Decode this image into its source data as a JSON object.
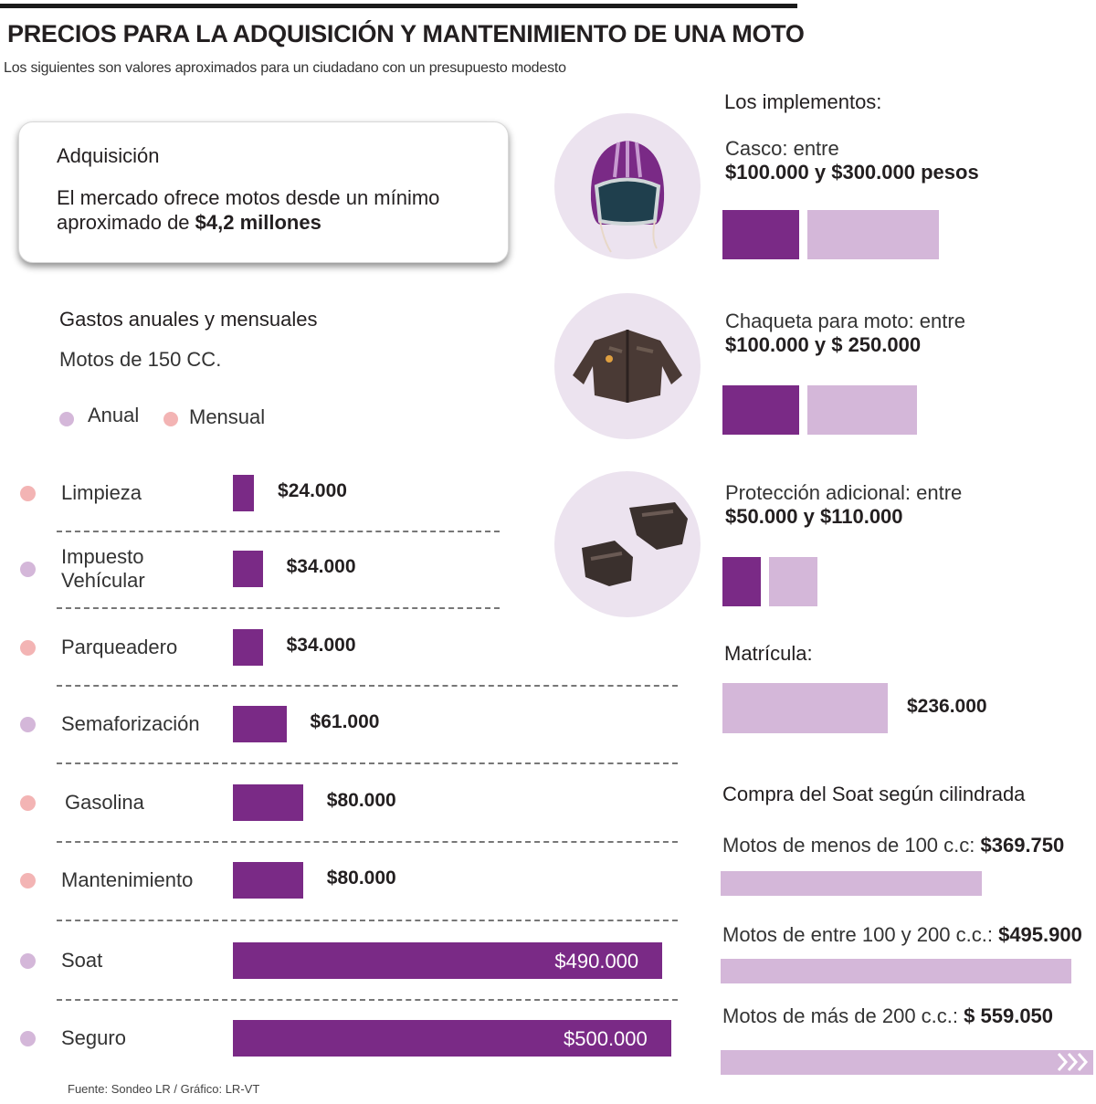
{
  "header": {
    "title": "PRECIOS PARA LA ADQUISICIÓN Y MANTENIMIENTO DE UNA MOTO",
    "subtitle": "Los siguientes son valores aproximados para un ciudadano con un presupuesto modesto"
  },
  "acquisition": {
    "heading": "Adquisición",
    "text_prefix": "El mercado ofrece motos desde un mínimo aproximado de ",
    "text_value": "$4,2 millones"
  },
  "expenses": {
    "heading": "Gastos anuales y mensuales",
    "subheading": "Motos de 150 CC.",
    "legend": [
      {
        "label": "Anual",
        "color": "#d4b7d9"
      },
      {
        "label": "Mensual",
        "color": "#f3b4b4"
      }
    ]
  },
  "implements": {
    "heading": "Los implementos:",
    "items": [
      {
        "icon": "helmet-icon",
        "text_prefix": "Casco: entre ",
        "text_bold": "$100.000 y $300.000 pesos",
        "min": 100000,
        "max": 300000
      },
      {
        "icon": "jacket-icon",
        "text_prefix": "Chaqueta para moto: entre",
        "text_bold": "$100.000 y $ 250.000",
        "min": 100000,
        "max": 250000
      },
      {
        "icon": "gloves-icon",
        "text_prefix": "Protección adicional: entre",
        "text_bold": "$50.000 y $110.000",
        "min": 50000,
        "max": 110000
      }
    ]
  },
  "matricula": {
    "heading": "Matrícula:",
    "value": 236000,
    "label": "$236.000"
  },
  "soat": {
    "heading": "Compra del Soat según cilindrada",
    "items": [
      {
        "label": "Motos de menos de 100 c.c:",
        "value_label": "$369.750",
        "value": 369750
      },
      {
        "label": "Motos de entre 100 y 200 c.c.:",
        "value_label": "$495.900",
        "value": 495900
      },
      {
        "label": "Motos de más de 200 c.c.:",
        "value_label": "$ 559.050",
        "value": 559050
      }
    ]
  },
  "source": "Fuente: Sondeo LR / Gráfico: LR-VT",
  "colors": {
    "bar": "#7a2a86",
    "anual": "#d4b7d9",
    "mensual": "#f3b4b4",
    "light_bar": "#d4b7d9"
  },
  "chart_data": [
    {
      "type": "bar",
      "title": "Gastos anuales y mensuales",
      "subtitle": "Motos de 150 CC.",
      "categories": [
        "Limpieza",
        "Impuesto Vehícular",
        "Parqueadero",
        "Semaforización",
        "Gasolina",
        "Mantenimiento",
        "Soat",
        "Seguro"
      ],
      "values": [
        24000,
        34000,
        34000,
        61000,
        80000,
        80000,
        490000,
        500000
      ],
      "value_labels": [
        "$24.000",
        "$34.000",
        "$34.000",
        "$61.000",
        "$80.000",
        "$80.000",
        "$490.000",
        "$500.000"
      ],
      "period": [
        "Mensual",
        "Anual",
        "Mensual",
        "Anual",
        "Mensual",
        "Mensual",
        "Anual",
        "Anual"
      ]
    },
    {
      "type": "bar",
      "title": "Compra del Soat según cilindrada",
      "categories": [
        "Motos de menos de 100 c.c:",
        "Motos de entre 100 y 200 c.c.:",
        "Motos de más de 200 c.c.:"
      ],
      "values": [
        369750,
        495900,
        559050
      ]
    }
  ]
}
